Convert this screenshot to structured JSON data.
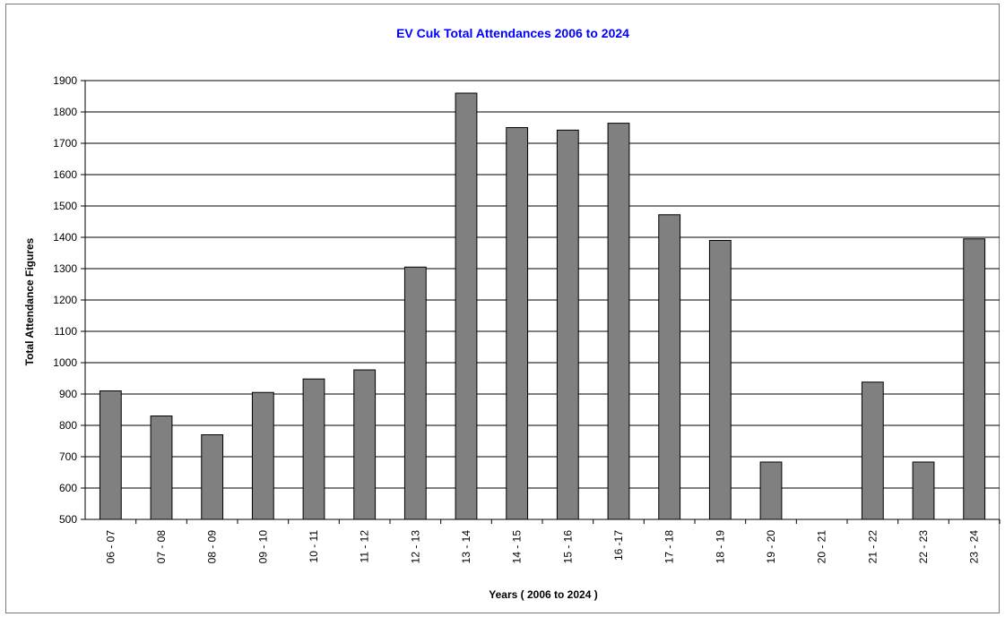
{
  "chart_data": {
    "type": "bar",
    "title": "EV Cuk Total Attendances 2006 to 2024",
    "xlabel": "Years ( 2006 to 2024 )",
    "ylabel": "Total Attendance Figures",
    "ylim": [
      500,
      1900
    ],
    "yticks": [
      500,
      600,
      700,
      800,
      900,
      1000,
      1100,
      1200,
      1300,
      1400,
      1500,
      1600,
      1700,
      1800,
      1900
    ],
    "grid": true,
    "legend": "none",
    "categories": [
      "06 - 07",
      "07 - 08",
      "08 - 09",
      "09 - 10",
      "10 - 11",
      "11 - 12",
      "12 - 13",
      "13 - 14",
      "14 - 15",
      "15 - 16",
      "16 -17",
      "17 - 18",
      "18 - 19",
      "19 - 20",
      "20 - 21",
      "21 - 22",
      "22 - 23",
      "23 - 24"
    ],
    "values": [
      910,
      830,
      770,
      905,
      948,
      977,
      1305,
      1860,
      1750,
      1742,
      1764,
      1472,
      1390,
      683,
      null,
      938,
      683,
      1395
    ],
    "colors": {
      "bar": "#808080",
      "bar_stroke": "#000000",
      "title": "#0000ff",
      "grid": "#000000"
    }
  }
}
